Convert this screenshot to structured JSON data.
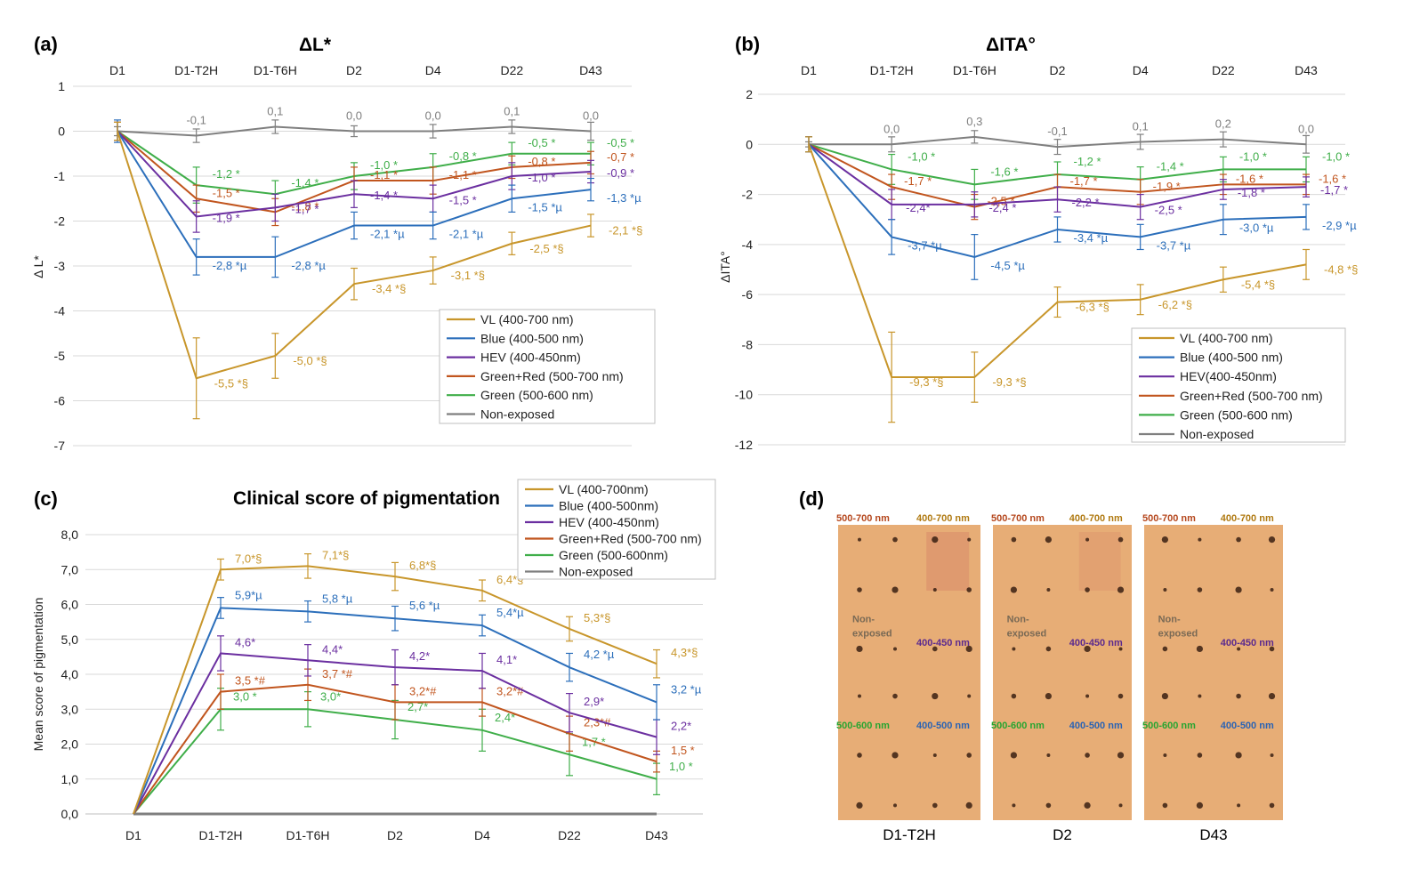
{
  "panels": {
    "a": {
      "label": "(a)"
    },
    "b": {
      "label": "(b)"
    },
    "c": {
      "label": "(c)"
    },
    "d": {
      "label": "(d)"
    }
  },
  "colors": {
    "VL": "#c8962b",
    "Blue": "#2c6fbb",
    "HEV": "#6b2fa0",
    "GreenRed": "#c1551e",
    "Green": "#3fae49",
    "Non": "#7f7f7f",
    "skin": "#e7ad76"
  },
  "chart_data": [
    {
      "type": "line",
      "title": "ΔL*",
      "ylabel": "Δ L*",
      "categories": [
        "D1",
        "D1-T2H",
        "D1-T6H",
        "D2",
        "D4",
        "D22",
        "D43"
      ],
      "ylim": [
        -7,
        1
      ],
      "yticks": [
        "1",
        "0",
        "-1",
        "-2",
        "-3",
        "-4",
        "-5",
        "-6",
        "-7"
      ],
      "grid": true,
      "legend_position": "bottom-right",
      "series": [
        {
          "name": "VL (400-700 nm)",
          "key": "VL",
          "values": [
            0,
            -5.5,
            -5.0,
            -3.4,
            -3.1,
            -2.5,
            -2.1
          ],
          "err": [
            0.2,
            0.9,
            0.5,
            0.35,
            0.3,
            0.25,
            0.25
          ],
          "labels": [
            "",
            "-5,5 *§",
            "-5,0 *§",
            "-3,4 *§",
            "-3,1 *§",
            "-2,5 *§",
            "-2,1 *§"
          ]
        },
        {
          "name": "Blue (400-500 nm)",
          "key": "Blue",
          "values": [
            0,
            -2.8,
            -2.8,
            -2.1,
            -2.1,
            -1.5,
            -1.3
          ],
          "err": [
            0.25,
            0.4,
            0.45,
            0.3,
            0.3,
            0.3,
            0.25
          ],
          "labels": [
            "",
            "-2,8 *µ",
            "-2,8 *µ",
            "-2,1 *µ",
            "-2,1 *µ",
            "-1,5 *µ",
            "-1,3 *µ"
          ]
        },
        {
          "name": "HEV (400-450nm)",
          "key": "HEV",
          "values": [
            0,
            -1.9,
            -1.7,
            -1.4,
            -1.5,
            -1.0,
            -0.9
          ],
          "err": [
            0.2,
            0.35,
            0.3,
            0.3,
            0.3,
            0.3,
            0.25
          ],
          "labels": [
            "",
            "-1,9 *",
            "-1,7 *",
            "-1,4 *",
            "-1,5 *",
            "-1,0 *",
            "-0,9 *"
          ]
        },
        {
          "name": "Green+Red (500-700 nm)",
          "key": "GreenRed",
          "values": [
            0,
            -1.5,
            -1.8,
            -1.1,
            -1.1,
            -0.8,
            -0.7
          ],
          "err": [
            0.2,
            0.3,
            0.3,
            0.3,
            0.3,
            0.25,
            0.25
          ],
          "labels": [
            "",
            "-1,5 *",
            "-1,8 *",
            "-1,1 *",
            "-1,1 *",
            "-0,8 *",
            "-0,7 *"
          ]
        },
        {
          "name": "Green (500-600 nm)",
          "key": "Green",
          "values": [
            0,
            -1.2,
            -1.4,
            -1.0,
            -0.8,
            -0.5,
            -0.5
          ],
          "err": [
            0.2,
            0.4,
            0.3,
            0.3,
            0.3,
            0.25,
            0.25
          ],
          "labels": [
            "",
            "-1,2 *",
            "-1,4 *",
            "-1,0 *",
            "-0,8 *",
            "-0,5 *",
            "-0,5 *"
          ]
        },
        {
          "name": "Non-exposed",
          "key": "Non",
          "values": [
            0,
            -0.1,
            0.1,
            0.0,
            0.0,
            0.1,
            0.0
          ],
          "err": [
            0.1,
            0.15,
            0.15,
            0.12,
            0.15,
            0.15,
            0.2
          ],
          "labels": [
            "",
            "-0,1",
            "0,1",
            "0,0",
            "0,0",
            "0,1",
            "0,0"
          ]
        }
      ]
    },
    {
      "type": "line",
      "title": "ΔITA°",
      "ylabel": "ΔITA°",
      "categories": [
        "D1",
        "D1-T2H",
        "D1-T6H",
        "D2",
        "D4",
        "D22",
        "D43"
      ],
      "ylim": [
        -12,
        2
      ],
      "yticks": [
        "2",
        "0",
        "-2",
        "-4",
        "-6",
        "-8",
        "-10",
        "-12"
      ],
      "grid": true,
      "legend_position": "bottom-right",
      "series": [
        {
          "name": "VL (400-700 nm)",
          "key": "VL",
          "values": [
            0,
            -9.3,
            -9.3,
            -6.3,
            -6.2,
            -5.4,
            -4.8
          ],
          "err": [
            0.3,
            1.8,
            1.0,
            0.6,
            0.6,
            0.5,
            0.6
          ],
          "labels": [
            "",
            "-9,3 *§",
            "-9,3 *§",
            "-6,3 *§",
            "-6,2 *§",
            "-5,4 *§",
            "-4,8 *§"
          ]
        },
        {
          "name": "Blue (400-500 nm)",
          "key": "Blue",
          "values": [
            0,
            -3.7,
            -4.5,
            -3.4,
            -3.7,
            -3.0,
            -2.9
          ],
          "err": [
            0.3,
            0.7,
            0.9,
            0.5,
            0.5,
            0.6,
            0.5
          ],
          "labels": [
            "",
            "-3,7 *µ",
            "-4,5 *µ",
            "-3,4 *µ",
            "-3,7 *µ",
            "-3,0 *µ",
            "-2,9 *µ"
          ]
        },
        {
          "name": "HEV(400-450nm)",
          "key": "HEV",
          "values": [
            0,
            -2.4,
            -2.4,
            -2.2,
            -2.5,
            -1.8,
            -1.7
          ],
          "err": [
            0.3,
            0.6,
            0.5,
            0.5,
            0.5,
            0.4,
            0.4
          ],
          "labels": [
            "",
            "-2,4*",
            "-2,4 *",
            "-2,2 *",
            "-2,5 *",
            "-1,8 *",
            "-1,7 *"
          ]
        },
        {
          "name": "Green+Red (500-700 nm)",
          "key": "GreenRed",
          "values": [
            0,
            -1.7,
            -2.5,
            -1.7,
            -1.9,
            -1.6,
            -1.6
          ],
          "err": [
            0.3,
            0.5,
            0.5,
            0.5,
            0.5,
            0.4,
            0.4
          ],
          "labels": [
            "",
            "-1,7 *",
            "-2,5 *",
            "-1,7 *",
            "-1,9 *",
            "-1,6 *",
            "-1,6 *"
          ]
        },
        {
          "name": "Green (500-600 nm)",
          "key": "Green",
          "values": [
            0,
            -1.0,
            -1.6,
            -1.2,
            -1.4,
            -1.0,
            -1.0
          ],
          "err": [
            0.3,
            0.6,
            0.6,
            0.5,
            0.5,
            0.5,
            0.5
          ],
          "labels": [
            "",
            "-1,0 *",
            "-1,6 *",
            "-1,2 *",
            "-1,4 *",
            "-1,0 *",
            "-1,0 *"
          ]
        },
        {
          "name": "Non-exposed",
          "key": "Non",
          "values": [
            0,
            0.0,
            0.3,
            -0.1,
            0.1,
            0.2,
            0.0
          ],
          "err": [
            0.1,
            0.3,
            0.25,
            0.3,
            0.3,
            0.3,
            0.35
          ],
          "labels": [
            "",
            "0,0",
            "0,3",
            "-0,1",
            "0,1",
            "0,2",
            "0,0"
          ]
        }
      ]
    },
    {
      "type": "line",
      "title": "Clinical score of pigmentation",
      "ylabel": "Mean score of pigmentation",
      "categories": [
        "D1",
        "D1-T2H",
        "D1-T6H",
        "D2",
        "D4",
        "D22",
        "D43"
      ],
      "ylim": [
        0,
        8
      ],
      "yticks": [
        "8,0",
        "7,0",
        "6,0",
        "5,0",
        "4,0",
        "3,0",
        "2,0",
        "1,0",
        "0,0"
      ],
      "grid": true,
      "legend_position": "top-right",
      "series": [
        {
          "name": "VL (400-700nm)",
          "key": "VL",
          "values": [
            0,
            7.0,
            7.1,
            6.8,
            6.4,
            5.3,
            4.3
          ],
          "err": [
            0,
            0.3,
            0.35,
            0.4,
            0.3,
            0.35,
            0.4
          ],
          "labels": [
            "",
            "7,0*§",
            "7,1*§",
            "6,8*§",
            "6,4*§",
            "5,3*§",
            "4,3*§"
          ]
        },
        {
          "name": "Blue (400-500nm)",
          "key": "Blue",
          "values": [
            0,
            5.9,
            5.8,
            5.6,
            5.4,
            4.2,
            3.2
          ],
          "err": [
            0,
            0.3,
            0.3,
            0.35,
            0.3,
            0.4,
            0.5
          ],
          "labels": [
            "",
            "5,9*µ",
            "5,8 *µ",
            "5,6 *µ",
            "5,4*µ",
            "4,2 *µ",
            "3,2 *µ"
          ]
        },
        {
          "name": "HEV (400-450nm)",
          "key": "HEV",
          "values": [
            0,
            4.6,
            4.4,
            4.2,
            4.1,
            2.9,
            2.2
          ],
          "err": [
            0,
            0.5,
            0.45,
            0.5,
            0.5,
            0.55,
            0.5
          ],
          "labels": [
            "",
            "4,6*",
            "4,4*",
            "4,2*",
            "4,1*",
            "2,9*",
            "2,2*"
          ]
        },
        {
          "name": "Green+Red (500-700 nm)",
          "key": "GreenRed",
          "values": [
            0,
            3.5,
            3.7,
            3.2,
            3.2,
            2.3,
            1.5
          ],
          "err": [
            0,
            0.5,
            0.45,
            0.5,
            0.4,
            0.5,
            0.3
          ],
          "labels": [
            "",
            "3,5 *#",
            "3,7 *#",
            "3,2*#",
            "3,2*#",
            "2,3*#",
            "1,5 *"
          ]
        },
        {
          "name": "Green (500-600nm)",
          "key": "Green",
          "values": [
            0,
            3.0,
            3.0,
            2.7,
            2.4,
            1.7,
            1.0
          ],
          "err": [
            0,
            0.6,
            0.5,
            0.55,
            0.6,
            0.6,
            0.45
          ],
          "labels": [
            "",
            "3,0 *",
            "3,0*",
            "2,7*",
            "2,4*",
            "1,7 *",
            "1,0 *"
          ]
        },
        {
          "name": "Non-exposed",
          "key": "Non",
          "values": [
            0,
            0,
            0,
            0,
            0,
            0,
            0
          ],
          "err": [
            0,
            0,
            0,
            0,
            0,
            0,
            0
          ],
          "labels": [
            "",
            "",
            "",
            "",
            "",
            "",
            ""
          ]
        }
      ]
    }
  ],
  "photos": {
    "captions": [
      "D1-T2H",
      "D2",
      "D43"
    ],
    "zones": {
      "tl": "500-700 nm",
      "tr": "400-700 nm",
      "ml": "Non-\nexposed",
      "mr": "400-450 nm",
      "bl": "500-600 nm",
      "br": "400-500 nm"
    }
  }
}
